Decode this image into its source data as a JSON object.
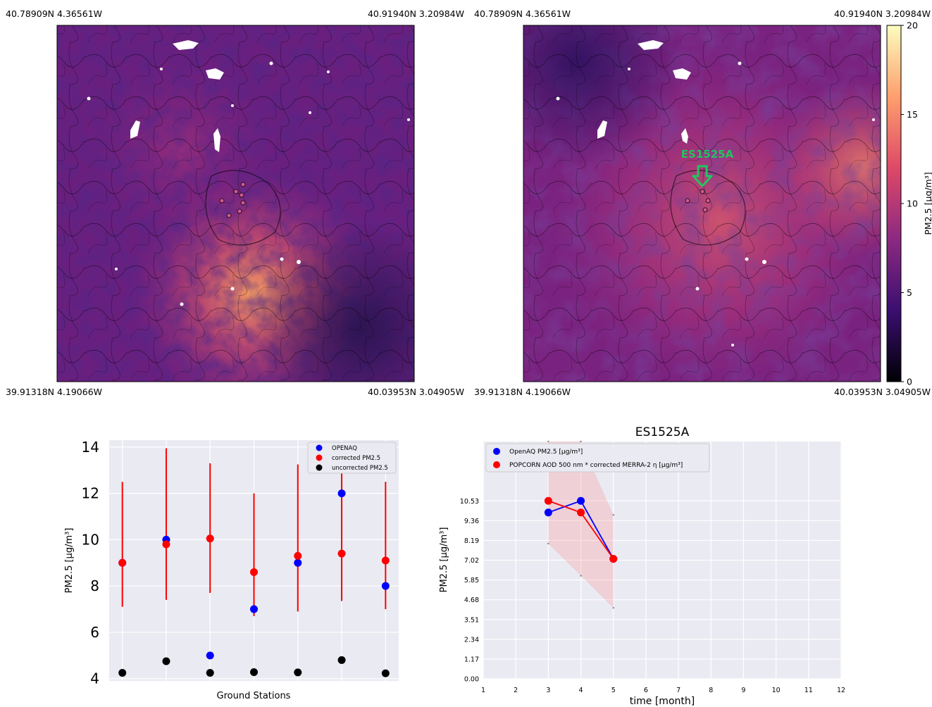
{
  "maps": {
    "left": {
      "corner_top_left": "40.78909N 4.36561W",
      "corner_top_right": "40.91940N 3.20984W",
      "corner_bottom_left": "39.91318N 4.19066W",
      "corner_bottom_right": "40.03953N 3.04905W"
    },
    "right": {
      "corner_top_left": "40.78909N 4.36561W",
      "corner_top_right": "40.91940N 3.20984W",
      "corner_bottom_left": "39.91318N 4.19066W",
      "corner_bottom_right": "40.03953N 3.04905W",
      "annotation": "ES1525A",
      "annotation_color": "#22c55e"
    },
    "colorbar": {
      "label": "PM2.5 [μg/m³]",
      "ticks": [
        0,
        5,
        10,
        15,
        20
      ],
      "range": [
        0,
        20
      ],
      "colors": [
        "#000004",
        "#3b0f70",
        "#8c2981",
        "#de4968",
        "#fe9f6d",
        "#fcfdbf"
      ]
    }
  },
  "chart_data": [
    {
      "type": "scatter",
      "title": "",
      "xlabel": "Ground Stations",
      "ylabel": "PM2.5 [μg/m³]",
      "ylim": [
        3.9,
        14.3
      ],
      "yticks": [
        4,
        6,
        8,
        10,
        12,
        14
      ],
      "grid": true,
      "legend_position": "top-right",
      "x": [
        1,
        2,
        3,
        4,
        5,
        6,
        7
      ],
      "series": [
        {
          "name": "OPENAQ",
          "color": "#0000ff",
          "values": [
            9.0,
            10.0,
            5.0,
            7.0,
            9.0,
            12.0,
            8.0
          ]
        },
        {
          "name": "corrected PM2.5",
          "color": "#ff0000",
          "values": [
            9.0,
            9.8,
            10.05,
            8.6,
            9.3,
            9.4,
            9.1
          ],
          "error_low": [
            7.1,
            7.4,
            7.7,
            6.7,
            6.9,
            7.35,
            7.0
          ],
          "error_high": [
            12.5,
            13.95,
            13.3,
            12.0,
            13.25,
            13.05,
            12.5
          ]
        },
        {
          "name": "uncorrected PM2.5",
          "color": "#000000",
          "values": [
            4.25,
            4.75,
            4.25,
            4.28,
            4.27,
            4.8,
            4.23
          ]
        }
      ]
    },
    {
      "type": "line",
      "title": "ES1525A",
      "xlabel": "time [month]",
      "ylabel": "PM2.5 [μg/m³]",
      "xlim": [
        1,
        12
      ],
      "xticks": [
        1,
        2,
        3,
        4,
        5,
        6,
        7,
        8,
        9,
        10,
        11,
        12
      ],
      "ylim": [
        0,
        14.04
      ],
      "yticks": [
        "0.00",
        "1.17",
        "2.34",
        "3.51",
        "4.68",
        "5.85",
        "7.02",
        "8.19",
        "9.36",
        "10.53"
      ],
      "grid": true,
      "legend_position": "top-left",
      "x": [
        3,
        4,
        5
      ],
      "series": [
        {
          "name": "OpenAQ PM2.5 [μg/m³]",
          "color": "#0000ff",
          "values": [
            9.84,
            10.53,
            7.1
          ]
        },
        {
          "name": "POPCORN AOD 500 nm * corrected MERRA-2 η [μg/m³]",
          "color": "#ff0000",
          "values": [
            10.53,
            9.84,
            7.1
          ],
          "band_low": [
            8.0,
            6.1,
            4.2
          ],
          "band_high": [
            14.04,
            14.04,
            9.7
          ]
        }
      ]
    }
  ]
}
